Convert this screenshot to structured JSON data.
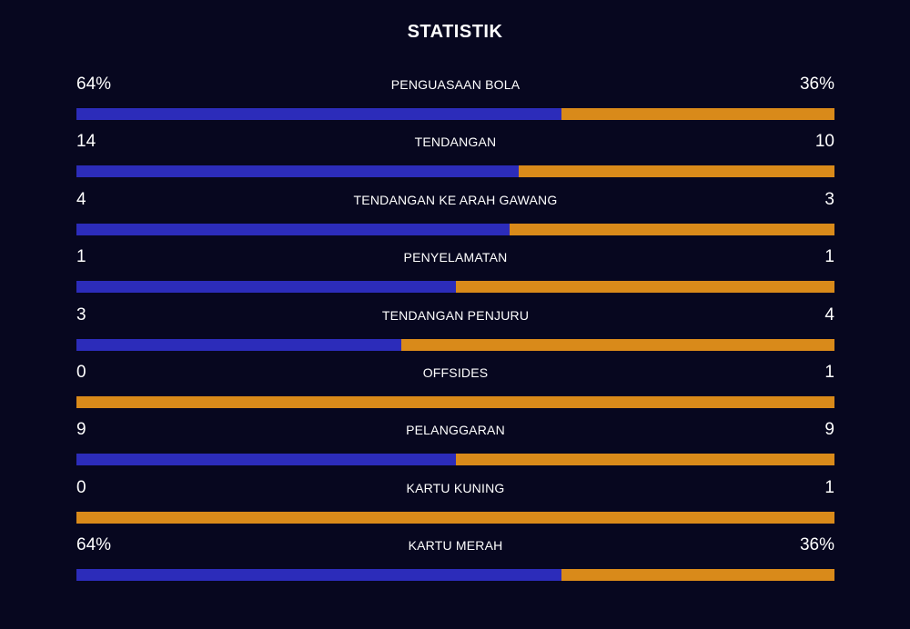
{
  "title": "STATISTIK",
  "colors": {
    "background": "#07071f",
    "home_bar": "#2c2cba",
    "away_bar": "#d98a1a",
    "text": "#ffffff"
  },
  "stats": [
    {
      "label": "PENGUASAAN BOLA",
      "left": "64%",
      "right": "36%",
      "left_share": 0.64
    },
    {
      "label": "TENDANGAN",
      "left": "14",
      "right": "10",
      "left_share": 0.583
    },
    {
      "label": "TENDANGAN KE ARAH GAWANG",
      "left": "4",
      "right": "3",
      "left_share": 0.571
    },
    {
      "label": "PENYELAMATAN",
      "left": "1",
      "right": "1",
      "left_share": 0.5
    },
    {
      "label": "TENDANGAN PENJURU",
      "left": "3",
      "right": "4",
      "left_share": 0.429
    },
    {
      "label": "OFFSIDES",
      "left": "0",
      "right": "1",
      "left_share": 0
    },
    {
      "label": "PELANGGARAN",
      "left": "9",
      "right": "9",
      "left_share": 0.5
    },
    {
      "label": "KARTU KUNING",
      "left": "0",
      "right": "1",
      "left_share": 0
    },
    {
      "label": "KARTU MERAH",
      "left": "64%",
      "right": "36%",
      "left_share": 0.64
    }
  ]
}
